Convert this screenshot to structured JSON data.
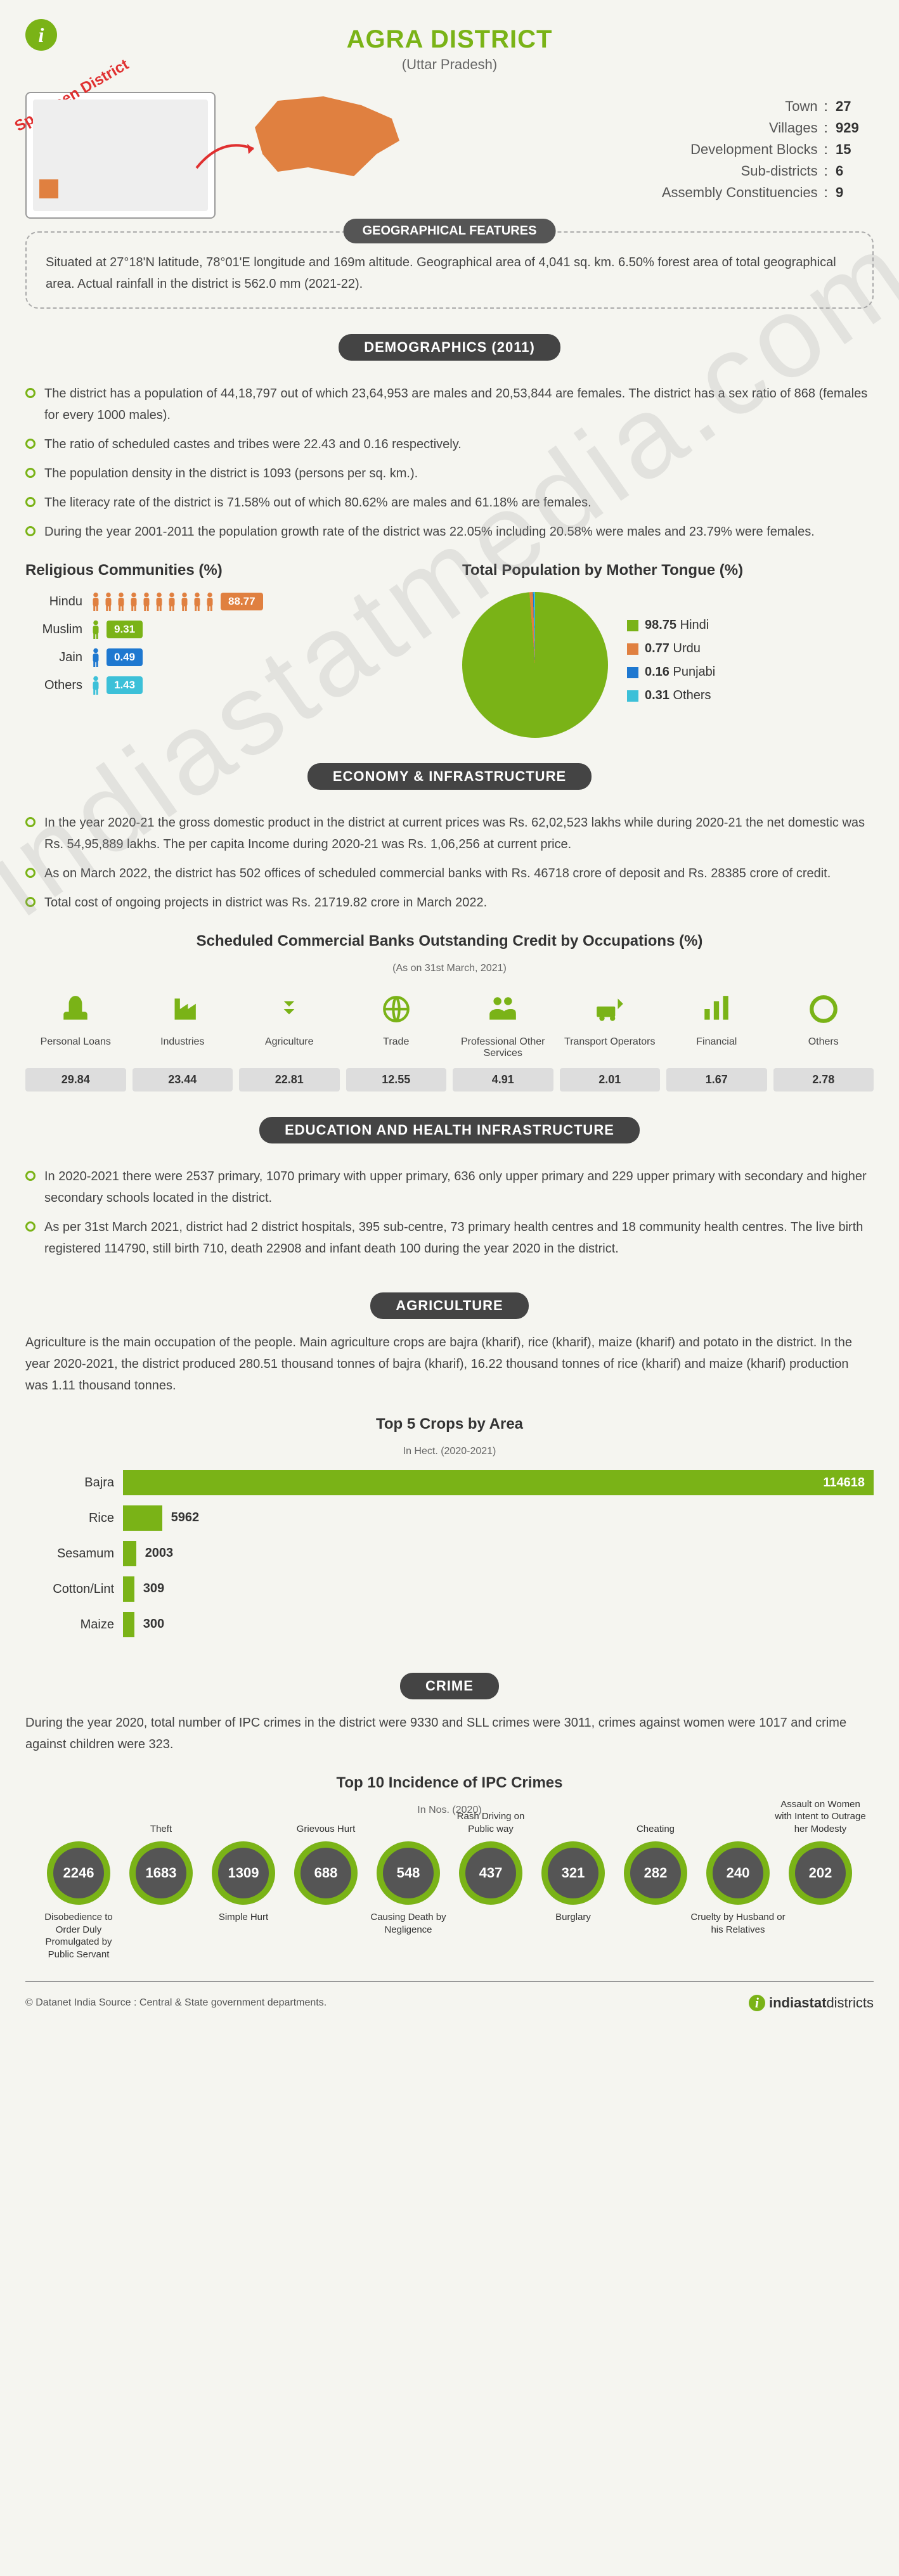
{
  "header": {
    "title": "AGRA DISTRICT",
    "subtitle": "(Uttar Pradesh)",
    "specimen": "Specimen District"
  },
  "colors": {
    "primary": "#7ab317",
    "dark_pill": "#444444",
    "orange": "#e08040",
    "blue": "#1e78d0",
    "cyan": "#3cc0d8",
    "grey_badge": "#d8d8d8",
    "text": "#444444"
  },
  "admin_stats": [
    {
      "label": "Town",
      "value": "27"
    },
    {
      "label": "Villages",
      "value": "929"
    },
    {
      "label": "Development Blocks",
      "value": "15"
    },
    {
      "label": "Sub-districts",
      "value": "6"
    },
    {
      "label": "Assembly Constituencies",
      "value": "9"
    }
  ],
  "geo": {
    "heading": "GEOGRAPHICAL FEATURES",
    "text": "Situated at 27°18'N latitude, 78°01'E longitude and 169m altitude. Geographical area of 4,041 sq. km. 6.50% forest area of total geographical area. Actual rainfall in the district is 562.0 mm (2021-22)."
  },
  "demographics": {
    "heading": "DEMOGRAPHICS (2011)",
    "bullets": [
      "The district has a population of 44,18,797 out of which 23,64,953 are males and 20,53,844 are females. The district has a sex ratio of 868 (females for every 1000 males).",
      "The ratio of scheduled castes and tribes were 22.43 and 0.16 respectively.",
      "The population density in the district is 1093 (persons per sq. km.).",
      "The literacy rate of the district is 71.58% out of which 80.62% are males and 61.18% are females.",
      "During the year 2001-2011 the population growth rate of the district was 22.05% including 20.58% were males and 23.79% were females."
    ]
  },
  "religion": {
    "heading": "Religious Communities (%)",
    "items": [
      {
        "label": "Hindu",
        "value": "88.77",
        "icons": 10,
        "color": "#e08040"
      },
      {
        "label": "Muslim",
        "value": "9.31",
        "icons": 1,
        "color": "#7ab317"
      },
      {
        "label": "Jain",
        "value": "0.49",
        "icons": 1,
        "color": "#1e78d0"
      },
      {
        "label": "Others",
        "value": "1.43",
        "icons": 1,
        "color": "#3cc0d8"
      }
    ]
  },
  "language": {
    "heading": "Total Population by Mother Tongue (%)",
    "items": [
      {
        "label": "Hindi",
        "value": "98.75",
        "color": "#7ab317"
      },
      {
        "label": "Urdu",
        "value": "0.77",
        "color": "#e08040"
      },
      {
        "label": "Punjabi",
        "value": "0.16",
        "color": "#1e78d0"
      },
      {
        "label": "Others",
        "value": "0.31",
        "color": "#3cc0d8"
      }
    ]
  },
  "economy": {
    "heading": "ECONOMY & INFRASTRUCTURE",
    "bullets": [
      "In the year 2020-21 the gross domestic product in the district at current prices was Rs. 62,02,523 lakhs while during 2020-21 the net domestic was Rs. 54,95,889 lakhs. The per capita Income during 2020-21 was Rs. 1,06,256 at current price.",
      "As on March 2022, the district has 502 offices of scheduled commercial banks with Rs. 46718 crore of deposit and Rs. 28385 crore of credit.",
      "Total cost of ongoing projects in district was Rs. 21719.82 crore in March 2022."
    ]
  },
  "credit": {
    "heading": "Scheduled Commercial Banks Outstanding Credit by Occupations (%)",
    "note": "(As on 31st March, 2021)",
    "items": [
      {
        "label": "Personal Loans",
        "value": "29.84",
        "icon": "hand"
      },
      {
        "label": "Industries",
        "value": "23.44",
        "icon": "factory"
      },
      {
        "label": "Agriculture",
        "value": "22.81",
        "icon": "wheat"
      },
      {
        "label": "Trade",
        "value": "12.55",
        "icon": "globe"
      },
      {
        "label": "Professional Other Services",
        "value": "4.91",
        "icon": "people"
      },
      {
        "label": "Transport Operators",
        "value": "2.01",
        "icon": "transport"
      },
      {
        "label": "Financial",
        "value": "1.67",
        "icon": "bar"
      },
      {
        "label": "Others",
        "value": "2.78",
        "icon": "circle"
      }
    ]
  },
  "education": {
    "heading": "EDUCATION AND HEALTH INFRASTRUCTURE",
    "bullets": [
      "In 2020-2021 there were 2537 primary, 1070 primary with upper primary, 636 only upper primary and 229 upper primary with secondary and higher secondary schools located in the district.",
      "As per 31st March 2021, district had 2 district hospitals, 395 sub-centre, 73 primary health centres and 18 community health centres. The live birth registered 114790, still birth 710, death 22908 and infant death 100 during the year 2020 in the district."
    ]
  },
  "agriculture": {
    "heading": "AGRICULTURE",
    "text": "Agriculture is the main occupation of the people. Main agriculture crops are bajra (kharif), rice (kharif), maize (kharif) and potato in the district. In the year 2020-2021, the district produced 280.51 thousand tonnes of bajra (kharif), 16.22 thousand tonnes of rice (kharif) and maize (kharif) production was 1.11 thousand tonnes."
  },
  "crops": {
    "heading": "Top 5 Crops by Area",
    "note": "In Hect. (2020-2021)",
    "max": 114618,
    "items": [
      {
        "label": "Bajra",
        "value": 114618
      },
      {
        "label": "Rice",
        "value": 5962
      },
      {
        "label": "Sesamum",
        "value": 2003
      },
      {
        "label": "Cotton/Lint",
        "value": 309
      },
      {
        "label": "Maize",
        "value": 300
      }
    ]
  },
  "crime": {
    "heading": "CRIME",
    "text": "During the year 2020, total number of IPC crimes in the district were 9330 and SLL crimes were 3011, crimes against women were 1017 and crime against children were 323.",
    "sub": "Top 10 Incidence of IPC Crimes",
    "note": "In Nos. (2020)",
    "items": [
      {
        "label": "Disobedience to Order Duly Promulgated by Public Servant",
        "value": "2246",
        "pos": "bot"
      },
      {
        "label": "Theft",
        "value": "1683",
        "pos": "top"
      },
      {
        "label": "Simple Hurt",
        "value": "1309",
        "pos": "bot"
      },
      {
        "label": "Grievous Hurt",
        "value": "688",
        "pos": "top"
      },
      {
        "label": "Causing Death by Negligence",
        "value": "548",
        "pos": "bot"
      },
      {
        "label": "Rash Driving on Public way",
        "value": "437",
        "pos": "top"
      },
      {
        "label": "Burglary",
        "value": "321",
        "pos": "bot"
      },
      {
        "label": "Cheating",
        "value": "282",
        "pos": "top"
      },
      {
        "label": "Cruelty by Husband or his Relatives",
        "value": "240",
        "pos": "bot"
      },
      {
        "label": "Assault on Women with Intent to Outrage her Modesty",
        "value": "202",
        "pos": "top"
      }
    ]
  },
  "footer": {
    "copy": "© Datanet India Source : Central & State government departments.",
    "logo": "indiastatdistricts"
  },
  "watermark": "indiastatmedia.com"
}
